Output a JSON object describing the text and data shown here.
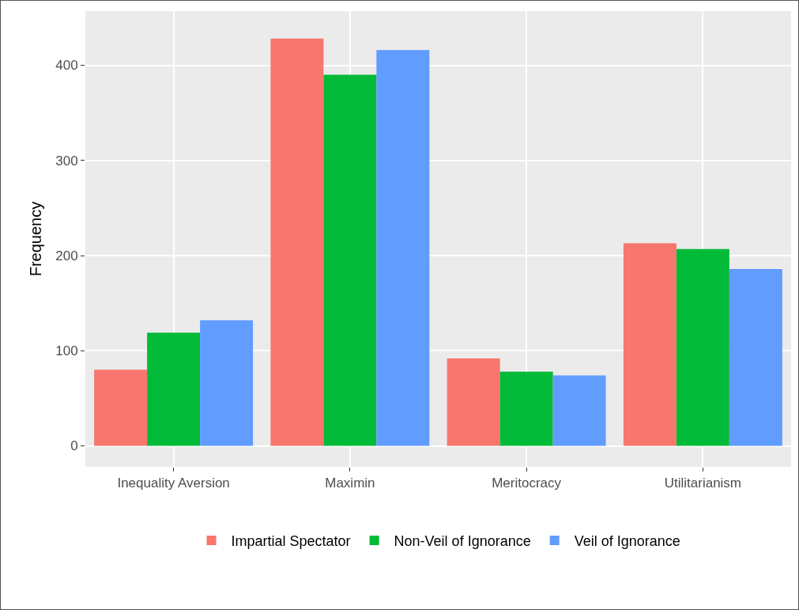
{
  "chart_data": {
    "type": "bar",
    "ylabel": "Frequency",
    "categories": [
      "Inequality Aversion",
      "Maximin",
      "Meritocracy",
      "Utilitarianism"
    ],
    "series": [
      {
        "name": "Impartial Spectator",
        "color": "#f8766d",
        "values": [
          80,
          428,
          92,
          213
        ]
      },
      {
        "name": "Non-Veil of Ignorance",
        "color": "#00ba38",
        "values": [
          119,
          390,
          78,
          207
        ]
      },
      {
        "name": "Veil of Ignorance",
        "color": "#619cff",
        "values": [
          132,
          416,
          74,
          186
        ]
      }
    ],
    "ylim": [
      -22,
      457
    ],
    "yticks": [
      0,
      100,
      200,
      300,
      400
    ],
    "grid": true,
    "legend": "bottom"
  }
}
